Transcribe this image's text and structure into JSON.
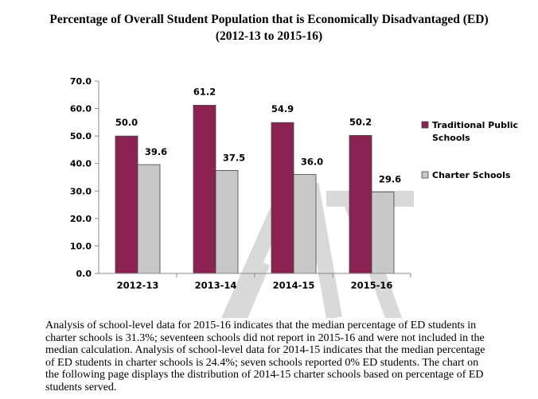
{
  "chart_data": {
    "type": "bar",
    "title_lines": [
      "Percentage of Overall Student Population that is Economically Disadvantaged (ED)",
      "(2012-13 to 2015-16)"
    ],
    "categories": [
      "2012-13",
      "2013-14",
      "2014-15",
      "2015-16"
    ],
    "series": [
      {
        "name": "Traditional Public Schools",
        "legend_lines": [
          "Traditional Public",
          "Schools"
        ],
        "color": "#8b2252",
        "values": [
          50.0,
          61.2,
          54.9,
          50.2
        ]
      },
      {
        "name": "Charter Schools",
        "legend_lines": [
          "Charter Schools"
        ],
        "color": "#c8c8c8",
        "values": [
          39.6,
          37.5,
          36.0,
          29.6
        ]
      }
    ],
    "value_labels": [
      [
        "50.0",
        "61.2",
        "54.9",
        "50.2"
      ],
      [
        "39.6",
        "37.5",
        "36.0",
        "29.6"
      ]
    ],
    "ylim": [
      0,
      70
    ],
    "yticks": [
      "0.0",
      "10.0",
      "20.0",
      "30.0",
      "40.0",
      "50.0",
      "60.0",
      "70.0"
    ],
    "xlabel": "",
    "ylabel": "",
    "legend_position": "right"
  },
  "colors": {
    "watermark": "#d9d9d9",
    "axis": "#8a8a8a"
  },
  "analysis_text": "Analysis of school-level data for 2015-16 indicates that the median percentage of ED students in charter schools is 31.3%; seventeen schools did not report in 2015-16 and were not included in the median calculation. Analysis of school-level data for 2014-15 indicates that the median percentage of ED students in charter schools is 24.4%; seven schools reported 0% ED students. The chart on the following page displays the distribution of 2014-15 charter schools based on percentage of ED students served."
}
